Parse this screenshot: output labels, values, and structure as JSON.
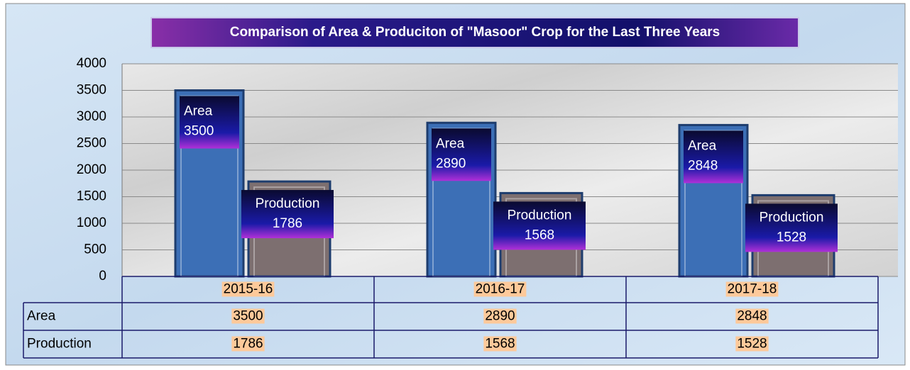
{
  "chart_data": {
    "type": "bar",
    "title": "Comparison of Area & Produciton of  \"Masoor\" Crop  for the Last Three Years",
    "categories": [
      "2015-16",
      "2016-17",
      "2017-18"
    ],
    "series": [
      {
        "name": "Area",
        "color": "#3c6fb6",
        "values": [
          3500,
          2890,
          2848
        ]
      },
      {
        "name": "Production",
        "color": "#7d6f70",
        "values": [
          1786,
          1568,
          1528
        ]
      }
    ],
    "ylim": [
      0,
      4000
    ],
    "yticks": [
      0,
      500,
      1000,
      1500,
      2000,
      2500,
      3000,
      3500,
      4000
    ],
    "grid": true
  }
}
